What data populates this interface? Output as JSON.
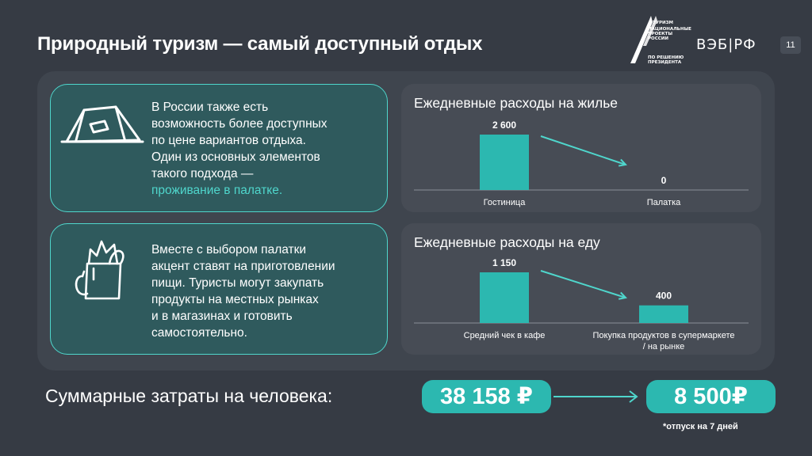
{
  "header": {
    "title": "Природный туризм — самый доступный отдых",
    "logo_np_top": "ТУРИЗМ",
    "logo_np_lines": [
      "НАЦИОНАЛЬНЫЕ",
      "ПРОЕКТЫ",
      "РОССИИ"
    ],
    "logo_np_bottom": [
      "ПО РЕШЕНИЮ",
      "ПРЕЗИДЕНТА"
    ],
    "veb_logo": "ВЭБ|РФ",
    "page_number": "11"
  },
  "cards": [
    {
      "icon": "tent-icon",
      "text_lines": [
        "В России также есть",
        "возможность более доступных",
        "по цене вариантов отдыха.",
        "Один из основных элементов",
        "такого подхода —"
      ],
      "highlight": "проживание в палатке."
    },
    {
      "icon": "grocery-bag-icon",
      "text_lines": [
        "Вместе с выбором палатки",
        "акцент ставят на приготовлении",
        "пищи. Туристы могут закупать",
        "продукты на местных рынках",
        "и в магазинах и готовить",
        "самостоятельно."
      ]
    }
  ],
  "chart_data": [
    {
      "type": "bar",
      "title": "Ежедневные расходы на жилье",
      "categories": [
        "Гостиница",
        "Палатка"
      ],
      "values": [
        2600,
        0
      ],
      "value_labels": [
        "2 600",
        "0"
      ],
      "bar_color": "#2cb8b0"
    },
    {
      "type": "bar",
      "title": "Ежедневные расходы на еду",
      "categories": [
        "Средний чек в кафе",
        "Покупка продуктов в супермаркете / на рынке"
      ],
      "category_lines": [
        [
          "Средний чек в кафе"
        ],
        [
          "Покупка продуктов в супермаркете",
          "/ на рынке"
        ]
      ],
      "values": [
        1150,
        400
      ],
      "value_labels": [
        "1 150",
        "400"
      ],
      "bar_color": "#2cb8b0"
    }
  ],
  "summary": {
    "label": "Суммарные затраты на человека:",
    "from_value": "38 158 ₽",
    "to_value": "8 500₽",
    "footnote": "*отпуск на 7 дней"
  },
  "colors": {
    "accent": "#4fd6cc",
    "bar": "#2cb8b0",
    "background": "#363b44"
  }
}
